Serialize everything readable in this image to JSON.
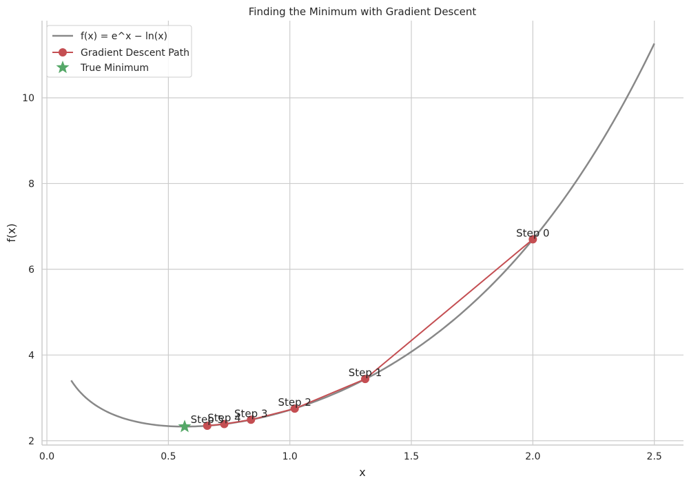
{
  "chart_data": {
    "type": "line",
    "title": "Finding the Minimum with Gradient Descent",
    "xlabel": "x",
    "ylabel": "f(x)",
    "xlim": [
      -0.02,
      2.62
    ],
    "ylim": [
      1.9,
      11.8
    ],
    "x_ticks": [
      0.0,
      0.5,
      1.0,
      1.5,
      2.0,
      2.5
    ],
    "x_tick_labels": [
      "0.0",
      "0.5",
      "1.0",
      "1.5",
      "2.0",
      "2.5"
    ],
    "y_ticks": [
      2,
      4,
      6,
      8,
      10
    ],
    "y_tick_labels": [
      "2",
      "4",
      "6",
      "8",
      "10"
    ],
    "grid": true,
    "legend_placement": "top-left",
    "curve": {
      "name": "f(x) = e^x − ln(x)",
      "x_range": [
        0.1,
        2.5
      ],
      "color": "#888888"
    },
    "series": [
      {
        "name": "Gradient Descent Path",
        "color": "#c44e52",
        "x": [
          2.0,
          1.31,
          1.02,
          0.84,
          0.73,
          0.66
        ],
        "y": [
          6.7,
          3.44,
          2.75,
          2.49,
          2.39,
          2.35
        ],
        "labels": [
          "Step 0",
          "Step 1",
          "Step 2",
          "Step 3",
          "Step 4",
          "Step 5"
        ]
      },
      {
        "name": "True Minimum",
        "color": "#55a868",
        "x": [
          0.567
        ],
        "y": [
          2.33
        ]
      }
    ]
  }
}
